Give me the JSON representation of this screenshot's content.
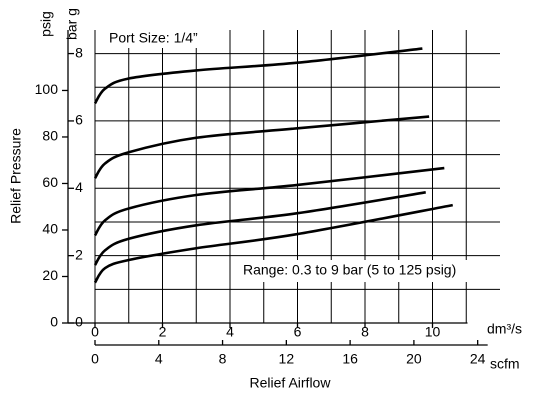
{
  "chart_data": {
    "type": "line",
    "ylabel": "Relief Pressure",
    "xlabel": "Relief Airflow",
    "y_unit": "bar g",
    "y2_unit": "psig",
    "x_unit": "dm³/s",
    "x2_unit": "scfm",
    "annotations": [
      "Port Size: 1/4”",
      "Range: 0.3 to 9 bar (5 to 125 psig)"
    ],
    "xlim": [
      0,
      12
    ],
    "xticks": [
      0,
      2,
      4,
      6,
      8,
      10
    ],
    "xminor": [
      1,
      3,
      5,
      7,
      9,
      11
    ],
    "x2lim": [
      0,
      25.4
    ],
    "x2ticks": [
      0,
      4,
      8,
      12,
      16,
      20,
      24
    ],
    "ylim": [
      0,
      8.7
    ],
    "yticks": [
      0,
      2,
      4,
      6,
      8
    ],
    "yminor": [
      1,
      3,
      5,
      7
    ],
    "y2lim": [
      0,
      126
    ],
    "y2ticks": [
      0,
      20,
      40,
      60,
      80,
      100
    ],
    "grid": true,
    "series": [
      {
        "color": "#000000",
        "x": [
          0,
          0.3,
          1,
          3,
          6,
          9.7
        ],
        "values": [
          6.52,
          6.96,
          7.26,
          7.5,
          7.73,
          8.15
        ]
      },
      {
        "color": "#000000",
        "x": [
          0,
          0.3,
          1,
          3,
          6,
          9.9
        ],
        "values": [
          4.3,
          4.74,
          5.07,
          5.5,
          5.78,
          6.13
        ]
      },
      {
        "color": "#000000",
        "x": [
          0,
          0.3,
          1,
          3,
          6,
          10.35
        ],
        "values": [
          2.6,
          3.05,
          3.4,
          3.8,
          4.1,
          4.6
        ]
      },
      {
        "color": "#000000",
        "x": [
          0,
          0.3,
          1,
          3,
          6,
          9.8
        ],
        "values": [
          1.72,
          2.16,
          2.5,
          2.9,
          3.26,
          3.88
        ]
      },
      {
        "color": "#000000",
        "x": [
          0,
          0.3,
          1,
          3,
          6,
          10.6
        ],
        "values": [
          1.2,
          1.63,
          1.87,
          2.22,
          2.64,
          3.5
        ]
      }
    ]
  }
}
